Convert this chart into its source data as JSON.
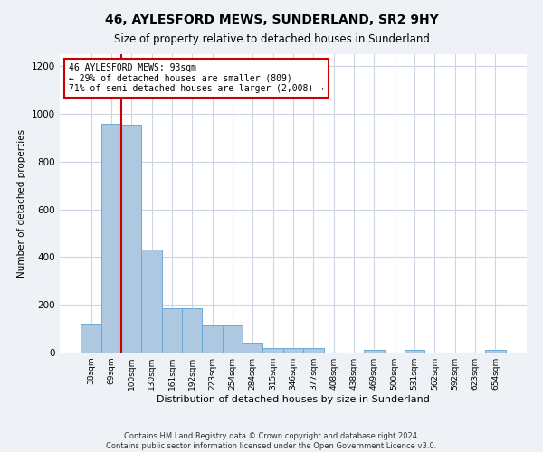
{
  "title": "46, AYLESFORD MEWS, SUNDERLAND, SR2 9HY",
  "subtitle": "Size of property relative to detached houses in Sunderland",
  "xlabel": "Distribution of detached houses by size in Sunderland",
  "ylabel": "Number of detached properties",
  "categories": [
    "38sqm",
    "69sqm",
    "100sqm",
    "130sqm",
    "161sqm",
    "192sqm",
    "223sqm",
    "254sqm",
    "284sqm",
    "315sqm",
    "346sqm",
    "377sqm",
    "408sqm",
    "438sqm",
    "469sqm",
    "500sqm",
    "531sqm",
    "562sqm",
    "592sqm",
    "623sqm",
    "654sqm"
  ],
  "values": [
    120,
    960,
    955,
    430,
    185,
    185,
    115,
    115,
    40,
    20,
    20,
    20,
    0,
    0,
    12,
    0,
    12,
    0,
    0,
    0,
    12
  ],
  "bar_color": "#adc8e0",
  "bar_edge_color": "#6aaad4",
  "property_sqm": 93,
  "annotation_text": "46 AYLESFORD MEWS: 93sqm\n← 29% of detached houses are smaller (809)\n71% of semi-detached houses are larger (2,008) →",
  "annotation_box_color": "#ffffff",
  "annotation_box_edge_color": "#cc0000",
  "property_line_color": "#cc0000",
  "ylim": [
    0,
    1250
  ],
  "yticks": [
    0,
    200,
    400,
    600,
    800,
    1000,
    1200
  ],
  "footer_line1": "Contains HM Land Registry data © Crown copyright and database right 2024.",
  "footer_line2": "Contains public sector information licensed under the Open Government Licence v3.0.",
  "background_color": "#eef2f7",
  "plot_background_color": "#ffffff",
  "grid_color": "#cdd5e3"
}
